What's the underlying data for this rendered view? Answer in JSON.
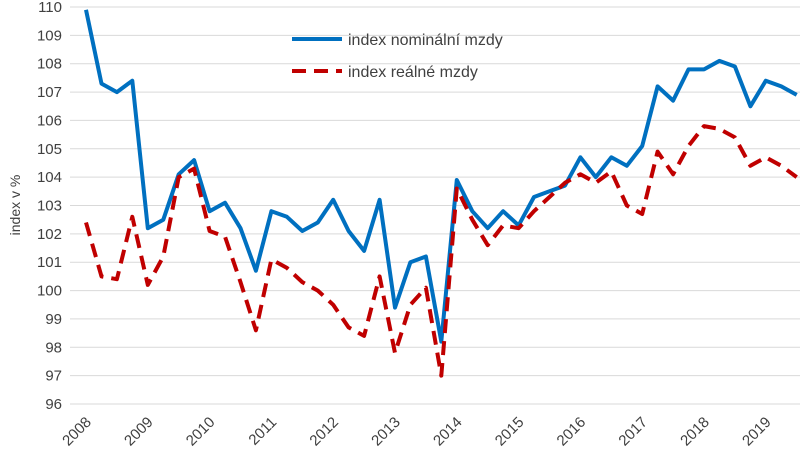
{
  "chart_data": {
    "type": "line",
    "ylabel": "index v %",
    "xlabel": "",
    "ylim": [
      96,
      110
    ],
    "y_ticks": [
      96,
      97,
      98,
      99,
      100,
      101,
      102,
      103,
      104,
      105,
      106,
      107,
      108,
      109,
      110
    ],
    "x_tick_labels": [
      "2008",
      "2009",
      "2010",
      "2011",
      "2012",
      "2013",
      "2014",
      "2015",
      "2016",
      "2017",
      "2018",
      "2019"
    ],
    "quarters_per_year": 4,
    "grid": "horizontal",
    "legend_position": "top-center",
    "series": [
      {
        "name": "index nominální mzdy",
        "color": "#0070C0",
        "style": "solid",
        "values": [
          109.9,
          107.3,
          107.0,
          107.4,
          102.2,
          102.5,
          104.1,
          104.6,
          102.8,
          103.1,
          102.2,
          100.7,
          102.8,
          102.6,
          102.1,
          102.4,
          103.2,
          102.1,
          101.4,
          103.2,
          99.4,
          101.0,
          101.2,
          98.2,
          103.9,
          102.8,
          102.2,
          102.8,
          102.3,
          103.3,
          103.5,
          103.7,
          104.7,
          104.0,
          104.7,
          104.4,
          105.1,
          107.2,
          106.7,
          107.8,
          107.8,
          108.1,
          107.9,
          106.5,
          107.4,
          107.2,
          106.9
        ]
      },
      {
        "name": "index reálné mzdy",
        "color": "#C00000",
        "style": "dashed",
        "values": [
          102.4,
          100.5,
          100.4,
          102.6,
          100.2,
          101.2,
          104.0,
          104.3,
          102.1,
          101.9,
          100.3,
          98.6,
          101.1,
          100.8,
          100.3,
          100.0,
          99.5,
          98.7,
          98.4,
          100.5,
          97.8,
          99.5,
          100.1,
          97.0,
          103.6,
          102.5,
          101.6,
          102.3,
          102.2,
          102.8,
          103.3,
          103.8,
          104.1,
          103.8,
          104.2,
          103.0,
          102.7,
          104.9,
          104.1,
          105.1,
          105.8,
          105.7,
          105.4,
          104.4,
          104.7,
          104.4,
          104.0
        ]
      }
    ]
  }
}
